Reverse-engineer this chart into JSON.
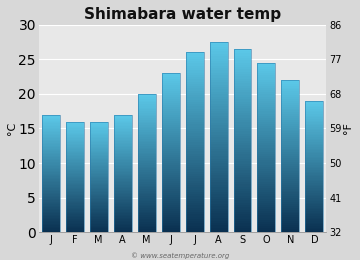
{
  "title": "Shimabara water temp",
  "months": [
    "J",
    "F",
    "M",
    "A",
    "M",
    "J",
    "J",
    "A",
    "S",
    "O",
    "N",
    "D"
  ],
  "values_c": [
    17,
    16,
    16,
    17,
    20,
    23,
    26,
    27.5,
    26.5,
    24.5,
    22,
    19
  ],
  "ylim_c": [
    0,
    30
  ],
  "yticks_c": [
    0,
    5,
    10,
    15,
    20,
    25,
    30
  ],
  "yticks_f": [
    32,
    41,
    50,
    59,
    68,
    77,
    86
  ],
  "ylabel_left": "°C",
  "ylabel_right": "°F",
  "bar_color_top": "#5bc8e8",
  "bar_color_bottom": "#0a3050",
  "bg_color": "#d8d8d8",
  "plot_bg_color": "#e8e8e8",
  "watermark": "© www.seatemperature.org",
  "title_fontsize": 11,
  "tick_fontsize": 7,
  "label_fontsize": 8,
  "bar_width": 0.75
}
